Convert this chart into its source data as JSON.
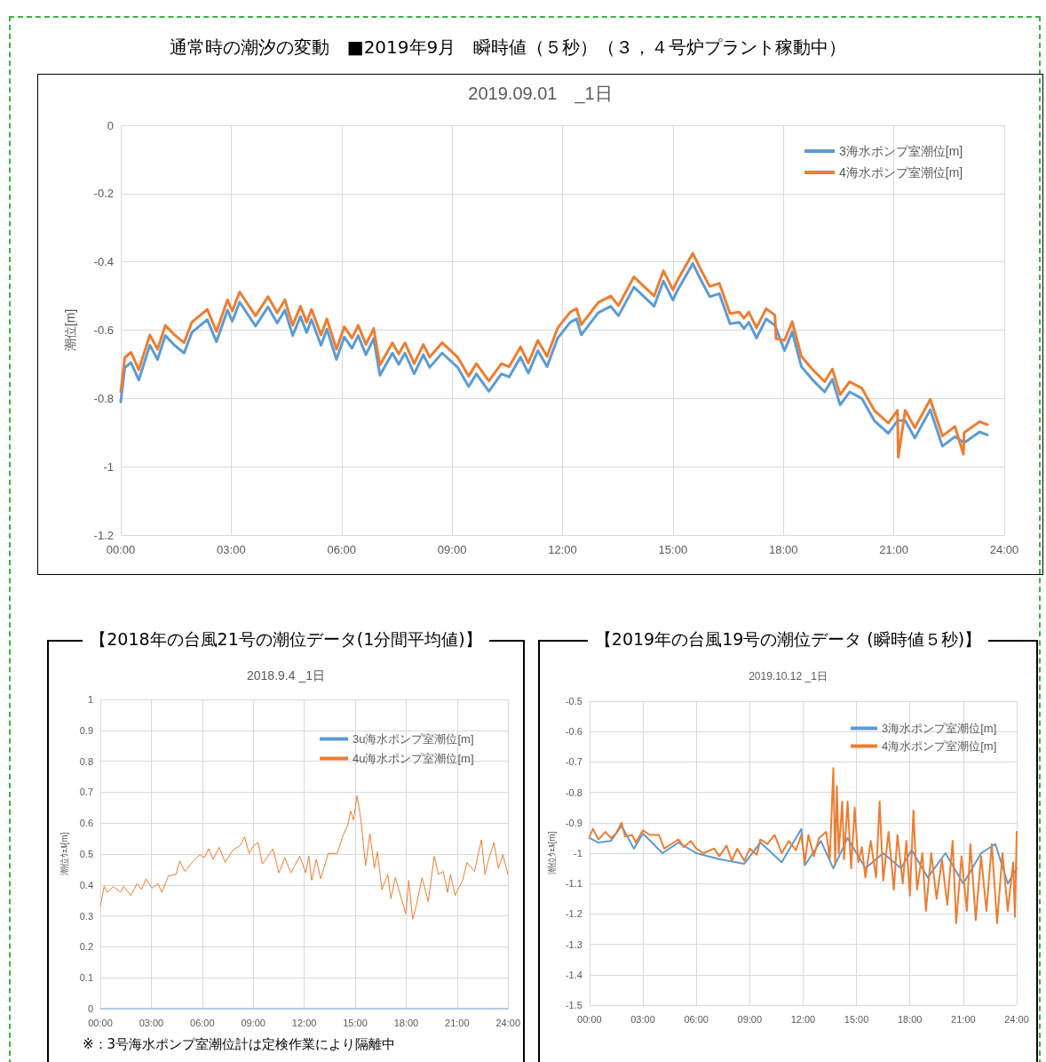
{
  "chart_data": [
    {
      "type": "line",
      "title": "通常時の潮汐の変動　■2019年9月　瞬時値（５秒）（３，４号炉プラント稼動中）",
      "subtitle": "2019.09.01　_1日",
      "ylabel": "潮位[m]",
      "xlim": [
        0,
        24
      ],
      "xticks": [
        {
          "value": 0,
          "label": "00:00"
        },
        {
          "value": 3,
          "label": "03:00"
        },
        {
          "value": 6,
          "label": "06:00"
        },
        {
          "value": 9,
          "label": "09:00"
        },
        {
          "value": 12,
          "label": "12:00"
        },
        {
          "value": 15,
          "label": "15:00"
        },
        {
          "value": 18,
          "label": "18:00"
        },
        {
          "value": 21,
          "label": "21:00"
        },
        {
          "value": 24,
          "label": "24:00"
        }
      ],
      "ylim": [
        -1.2,
        0
      ],
      "yticks": [
        -1.2,
        -1,
        -0.8,
        -0.6,
        -0.4,
        -0.2,
        0
      ],
      "grid": true,
      "legend": "top right",
      "marker": "none",
      "line_style": "solid",
      "series": [
        {
          "name": "3海水ポンプ室潮位[m]",
          "color": "#5b9bd5",
          "x": [
            0,
            0.11,
            0.28,
            0.49,
            0.79,
            1.0,
            1.21,
            1.46,
            1.72,
            1.93,
            2.35,
            2.6,
            2.9,
            3.03,
            3.23,
            3.66,
            4.0,
            4.25,
            4.46,
            4.67,
            4.88,
            5.05,
            5.18,
            5.44,
            5.6,
            5.86,
            6.07,
            6.28,
            6.45,
            6.66,
            6.87,
            7.04,
            7.38,
            7.55,
            7.72,
            7.97,
            8.22,
            8.39,
            8.73,
            9.15,
            9.45,
            9.66,
            10.0,
            10.34,
            10.55,
            10.86,
            11.07,
            11.33,
            11.58,
            11.87,
            12.21,
            12.38,
            12.51,
            12.97,
            13.31,
            13.52,
            13.94,
            14.49,
            14.74,
            15.0,
            15.12,
            15.54,
            15.75,
            16.0,
            16.26,
            16.55,
            16.8,
            16.93,
            17.06,
            17.27,
            17.53,
            17.77,
            18.03,
            18.24,
            18.49,
            18.78,
            19.12,
            19.33,
            19.54,
            19.8,
            20.13,
            20.47,
            20.85,
            21.1,
            21.31,
            21.57,
            21.99,
            22.32,
            22.66,
            22.91,
            23.33,
            23.54
          ],
          "values": [
            -0.81,
            -0.71,
            -0.695,
            -0.746,
            -0.644,
            -0.686,
            -0.616,
            -0.644,
            -0.667,
            -0.607,
            -0.569,
            -0.634,
            -0.541,
            -0.574,
            -0.518,
            -0.588,
            -0.532,
            -0.579,
            -0.541,
            -0.616,
            -0.56,
            -0.607,
            -0.569,
            -0.644,
            -0.597,
            -0.686,
            -0.62,
            -0.653,
            -0.616,
            -0.672,
            -0.625,
            -0.732,
            -0.667,
            -0.7,
            -0.667,
            -0.728,
            -0.672,
            -0.709,
            -0.667,
            -0.709,
            -0.765,
            -0.728,
            -0.779,
            -0.728,
            -0.737,
            -0.679,
            -0.726,
            -0.66,
            -0.707,
            -0.623,
            -0.577,
            -0.567,
            -0.614,
            -0.549,
            -0.53,
            -0.558,
            -0.474,
            -0.53,
            -0.456,
            -0.512,
            -0.484,
            -0.405,
            -0.451,
            -0.502,
            -0.493,
            -0.581,
            -0.577,
            -0.595,
            -0.577,
            -0.623,
            -0.567,
            -0.586,
            -0.66,
            -0.605,
            -0.707,
            -0.744,
            -0.781,
            -0.744,
            -0.819,
            -0.781,
            -0.8,
            -0.865,
            -0.902,
            -0.865,
            -0.865,
            -0.916,
            -0.833,
            -0.94,
            -0.912,
            -0.93,
            -0.898,
            -0.907
          ]
        },
        {
          "name": "4海水ポンプ室潮位[m]",
          "color": "#ed7d31",
          "x": [
            0,
            0.11,
            0.28,
            0.49,
            0.79,
            1.0,
            1.21,
            1.46,
            1.72,
            1.93,
            2.35,
            2.6,
            2.9,
            3.03,
            3.23,
            3.66,
            4.0,
            4.25,
            4.46,
            4.67,
            4.88,
            5.05,
            5.18,
            5.44,
            5.6,
            5.86,
            6.07,
            6.28,
            6.45,
            6.66,
            6.87,
            7.04,
            7.38,
            7.55,
            7.72,
            7.97,
            8.22,
            8.39,
            8.73,
            9.15,
            9.45,
            9.66,
            10.0,
            10.34,
            10.55,
            10.86,
            11.07,
            11.33,
            11.58,
            11.87,
            12.21,
            12.38,
            12.51,
            12.97,
            13.31,
            13.52,
            13.94,
            14.49,
            14.74,
            15.0,
            15.12,
            15.54,
            15.75,
            16.0,
            16.26,
            16.55,
            16.8,
            16.93,
            17.06,
            17.27,
            17.53,
            17.77,
            17.8,
            18.03,
            18.24,
            18.49,
            18.78,
            19.12,
            19.33,
            19.54,
            19.8,
            20.13,
            20.47,
            20.85,
            21.1,
            21.12,
            21.31,
            21.57,
            21.99,
            22.32,
            22.66,
            22.89,
            22.91,
            23.33,
            23.54
          ],
          "values": [
            -0.78,
            -0.68,
            -0.665,
            -0.716,
            -0.614,
            -0.656,
            -0.586,
            -0.614,
            -0.637,
            -0.577,
            -0.539,
            -0.604,
            -0.511,
            -0.544,
            -0.488,
            -0.558,
            -0.502,
            -0.549,
            -0.511,
            -0.586,
            -0.53,
            -0.577,
            -0.539,
            -0.614,
            -0.567,
            -0.656,
            -0.59,
            -0.623,
            -0.586,
            -0.642,
            -0.595,
            -0.702,
            -0.637,
            -0.67,
            -0.637,
            -0.698,
            -0.642,
            -0.679,
            -0.637,
            -0.679,
            -0.735,
            -0.698,
            -0.749,
            -0.698,
            -0.707,
            -0.649,
            -0.696,
            -0.63,
            -0.677,
            -0.593,
            -0.547,
            -0.537,
            -0.584,
            -0.519,
            -0.5,
            -0.528,
            -0.444,
            -0.5,
            -0.426,
            -0.482,
            -0.454,
            -0.375,
            -0.421,
            -0.472,
            -0.463,
            -0.551,
            -0.547,
            -0.565,
            -0.547,
            -0.593,
            -0.537,
            -0.556,
            -0.625,
            -0.63,
            -0.575,
            -0.677,
            -0.714,
            -0.751,
            -0.714,
            -0.789,
            -0.751,
            -0.77,
            -0.835,
            -0.872,
            -0.835,
            -0.972,
            -0.835,
            -0.886,
            -0.803,
            -0.91,
            -0.882,
            -0.963,
            -0.9,
            -0.868,
            -0.877
          ]
        }
      ]
    },
    {
      "type": "line",
      "title": "【2018年の台風21号の潮位データ(1分間平均値)】",
      "subtitle": "2018.9.4 _1日",
      "ylabel": "潮位ｳｪﾙ[m]",
      "annotations": [
        "※：3号海水ポンプ室潮位計は定検作業により隔離中"
      ],
      "xlim": [
        0,
        24
      ],
      "xticks": [
        {
          "value": 0,
          "label": "00:00"
        },
        {
          "value": 3,
          "label": "03:00"
        },
        {
          "value": 6,
          "label": "06:00"
        },
        {
          "value": 9,
          "label": "09:00"
        },
        {
          "value": 12,
          "label": "12:00"
        },
        {
          "value": 15,
          "label": "15:00"
        },
        {
          "value": 18,
          "label": "18:00"
        },
        {
          "value": 21,
          "label": "21:00"
        },
        {
          "value": 24,
          "label": "24:00"
        }
      ],
      "ylim": [
        0,
        1
      ],
      "yticks": [
        0,
        0.1,
        0.2,
        0.3,
        0.4,
        0.5,
        0.6,
        0.7,
        0.8,
        0.9,
        1
      ],
      "grid": true,
      "legend": "top right",
      "marker": "none",
      "line_style": "solid",
      "series": [
        {
          "name": "3u海水ポンプ室潮位[m]",
          "color": "#5b9bd5",
          "x": [
            0,
            24
          ],
          "values": [
            0,
            0
          ]
        },
        {
          "name": "4u海水ポンプ室潮位[m]",
          "color": "#ed7d31",
          "x": [
            0,
            0.23,
            0.4,
            0.76,
            1.2,
            1.37,
            1.81,
            2.16,
            2.43,
            2.69,
            3.04,
            3.39,
            3.62,
            4.01,
            4.45,
            4.67,
            4.97,
            5.41,
            5.85,
            6.12,
            6.38,
            6.64,
            6.99,
            7.35,
            7.79,
            8.22,
            8.49,
            8.75,
            9.02,
            9.28,
            9.54,
            10.16,
            10.51,
            10.86,
            11.21,
            11.74,
            12.09,
            12.27,
            12.44,
            12.71,
            12.97,
            13.41,
            13.94,
            14.29,
            14.55,
            14.73,
            14.9,
            15.11,
            15.34,
            15.61,
            15.87,
            16.13,
            16.31,
            16.57,
            16.92,
            17.1,
            17.36,
            17.72,
            17.98,
            18.15,
            18.38,
            18.59,
            18.94,
            19.3,
            19.65,
            19.91,
            20.18,
            20.44,
            20.61,
            20.88,
            21.32,
            21.58,
            22.02,
            22.43,
            22.64,
            22.81,
            23.16,
            23.43,
            23.69,
            23.99
          ],
          "values": [
            0.332,
            0.395,
            0.376,
            0.395,
            0.376,
            0.395,
            0.366,
            0.405,
            0.385,
            0.42,
            0.39,
            0.405,
            0.376,
            0.429,
            0.434,
            0.478,
            0.444,
            0.473,
            0.498,
            0.488,
            0.517,
            0.483,
            0.522,
            0.473,
            0.512,
            0.527,
            0.556,
            0.502,
            0.527,
            0.537,
            0.468,
            0.517,
            0.439,
            0.488,
            0.439,
            0.493,
            0.439,
            0.493,
            0.415,
            0.483,
            0.42,
            0.502,
            0.502,
            0.561,
            0.59,
            0.639,
            0.61,
            0.688,
            0.61,
            0.463,
            0.566,
            0.454,
            0.507,
            0.385,
            0.434,
            0.356,
            0.424,
            0.356,
            0.307,
            0.415,
            0.29,
            0.332,
            0.424,
            0.346,
            0.493,
            0.434,
            0.444,
            0.376,
            0.434,
            0.366,
            0.415,
            0.473,
            0.444,
            0.546,
            0.434,
            0.473,
            0.537,
            0.454,
            0.498,
            0.434
          ]
        }
      ]
    },
    {
      "type": "line",
      "title": "【2019年の台風19号の潮位データ (瞬時値５秒)】",
      "subtitle": "2019.10.12 _1日",
      "ylabel": "潮位ｳｪﾙ[m]",
      "xlim": [
        0,
        24
      ],
      "xticks": [
        {
          "value": 0,
          "label": "00:00"
        },
        {
          "value": 3,
          "label": "03:00"
        },
        {
          "value": 6,
          "label": "06:00"
        },
        {
          "value": 9,
          "label": "09:00"
        },
        {
          "value": 12,
          "label": "12:00"
        },
        {
          "value": 15,
          "label": "15:00"
        },
        {
          "value": 18,
          "label": "18:00"
        },
        {
          "value": 21,
          "label": "21:00"
        },
        {
          "value": 24,
          "label": "24:00"
        }
      ],
      "ylim": [
        -1.5,
        -0.5
      ],
      "yticks": [
        -1.5,
        -1.4,
        -1.3,
        -1.2,
        -1.1,
        -1,
        -0.9,
        -0.8,
        -0.7,
        -0.6,
        -0.5
      ],
      "grid": true,
      "legend": "top right",
      "marker": "none",
      "line_style": "solid",
      "series": [
        {
          "name": "3海水ポンプ室潮位[m]",
          "color": "#5b9bd5",
          "x": [
            0,
            0.5,
            1.2,
            1.8,
            2.5,
            3.0,
            4.1,
            5.0,
            6.0,
            7.3,
            8.7,
            9.6,
            10.8,
            11.9,
            12.1,
            13.0,
            13.7,
            14.5,
            15.5,
            16.5,
            17.5,
            18.1,
            19.0,
            20.0,
            21.0,
            22.0,
            22.8,
            23.5,
            24.0
          ],
          "values": [
            -0.95,
            -0.965,
            -0.96,
            -0.91,
            -0.985,
            -0.935,
            -1.0,
            -0.965,
            -1.0,
            -1.02,
            -1.035,
            -0.965,
            -1.03,
            -0.92,
            -1.04,
            -0.96,
            -1.05,
            -0.95,
            -1.05,
            -1.0,
            -1.05,
            -0.99,
            -1.08,
            -1.0,
            -1.1,
            -1.0,
            -0.97,
            -1.1,
            -1.05
          ]
        },
        {
          "name": "4海水ポンプ室潮位[m]",
          "color": "#ed7d31",
          "x": [
            0,
            0.2,
            0.5,
            0.9,
            1.2,
            1.5,
            1.8,
            2.0,
            2.4,
            2.6,
            3.0,
            3.4,
            3.9,
            4.2,
            4.6,
            5.0,
            5.3,
            5.7,
            6.0,
            6.4,
            7.0,
            7.3,
            7.7,
            8.0,
            8.3,
            8.7,
            9.0,
            9.4,
            9.6,
            10.0,
            10.4,
            10.8,
            11.2,
            11.6,
            11.9,
            12.1,
            12.3,
            12.6,
            12.9,
            13.3,
            13.5,
            13.7,
            13.8,
            13.9,
            14.0,
            14.2,
            14.3,
            14.5,
            14.7,
            14.9,
            15.1,
            15.3,
            15.5,
            15.8,
            16.1,
            16.3,
            16.5,
            16.8,
            17.1,
            17.3,
            17.6,
            17.8,
            18.0,
            18.2,
            18.4,
            18.7,
            18.9,
            19.2,
            19.5,
            19.8,
            20.1,
            20.4,
            20.6,
            20.9,
            21.2,
            21.4,
            21.7,
            22.0,
            22.3,
            22.6,
            22.9,
            23.2,
            23.5,
            23.8,
            23.9,
            24.0
          ],
          "values": [
            -0.945,
            -0.92,
            -0.955,
            -0.93,
            -0.95,
            -0.935,
            -0.9,
            -0.945,
            -0.94,
            -0.965,
            -0.925,
            -0.94,
            -0.94,
            -0.985,
            -0.97,
            -0.955,
            -0.98,
            -0.96,
            -0.985,
            -1.0,
            -0.985,
            -1.01,
            -0.975,
            -1.025,
            -0.985,
            -1.025,
            -0.985,
            -1.005,
            -0.955,
            -0.97,
            -0.94,
            -1.0,
            -0.96,
            -0.99,
            -0.94,
            -1.03,
            -0.94,
            -1.01,
            -0.95,
            -0.93,
            -1.02,
            -0.72,
            -1.04,
            -0.78,
            -1.0,
            -0.83,
            -1.02,
            -0.83,
            -1.05,
            -0.85,
            -1.03,
            -0.98,
            -1.08,
            -0.96,
            -1.08,
            -0.83,
            -1.09,
            -0.93,
            -1.12,
            -0.94,
            -1.1,
            -0.96,
            -1.14,
            -0.86,
            -1.12,
            -1.0,
            -1.19,
            -1.0,
            -1.15,
            -1.02,
            -1.17,
            -0.96,
            -1.23,
            -1.01,
            -1.19,
            -0.97,
            -1.22,
            -1.01,
            -1.19,
            -0.97,
            -1.23,
            -1.0,
            -1.19,
            -1.03,
            -1.21,
            -0.93
          ]
        }
      ]
    }
  ]
}
